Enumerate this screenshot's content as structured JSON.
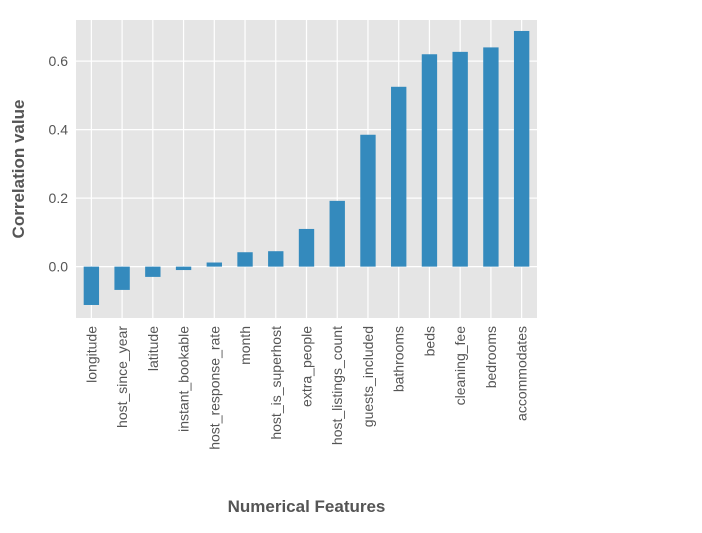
{
  "chart_data": {
    "type": "bar",
    "title": "",
    "xlabel": "Numerical Features",
    "ylabel": "Correlation value",
    "categories": [
      "longitude",
      "host_since_year",
      "latitude",
      "instant_bookable",
      "host_response_rate",
      "month",
      "host_is_superhost",
      "extra_people",
      "host_listings_count",
      "guests_included",
      "bathrooms",
      "beds",
      "cleaning_fee",
      "bedrooms",
      "accommodates"
    ],
    "values": [
      -0.112,
      -0.068,
      -0.03,
      -0.01,
      0.012,
      0.042,
      0.045,
      0.11,
      0.192,
      0.385,
      0.525,
      0.62,
      0.627,
      0.64,
      0.688
    ],
    "ylim": [
      -0.15,
      0.72
    ],
    "yticks": [
      0.0,
      0.2,
      0.4,
      0.6
    ],
    "ytick_labels": [
      "0.0",
      "0.2",
      "0.4",
      "0.6"
    ],
    "grid": true,
    "legend": "none",
    "colors": {
      "bar": "#348ABD",
      "plot_background": "#E5E5E5",
      "grid": "#FFFFFF",
      "text": "#555555"
    }
  }
}
